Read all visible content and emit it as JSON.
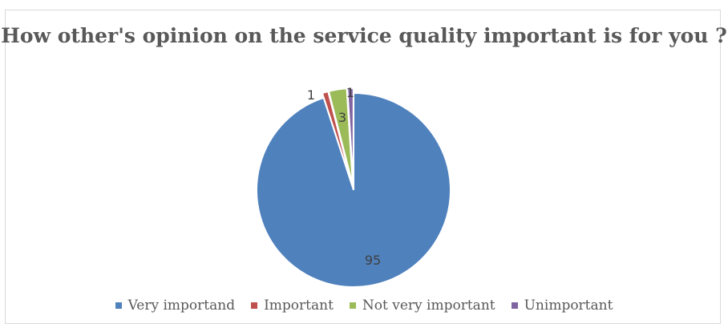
{
  "chart_data": {
    "type": "pie",
    "title": "How other's opinion on the service quality important is for you ?",
    "categories": [
      "Very importand",
      "Important",
      "Not very important",
      "Unimportant"
    ],
    "values": [
      95,
      1,
      3,
      1
    ],
    "colors": [
      "#4f81bd",
      "#c0504d",
      "#9bbb59",
      "#8064a2"
    ],
    "legend_position": "bottom",
    "exploded_slices": [
      "Important",
      "Not very important",
      "Unimportant"
    ]
  }
}
